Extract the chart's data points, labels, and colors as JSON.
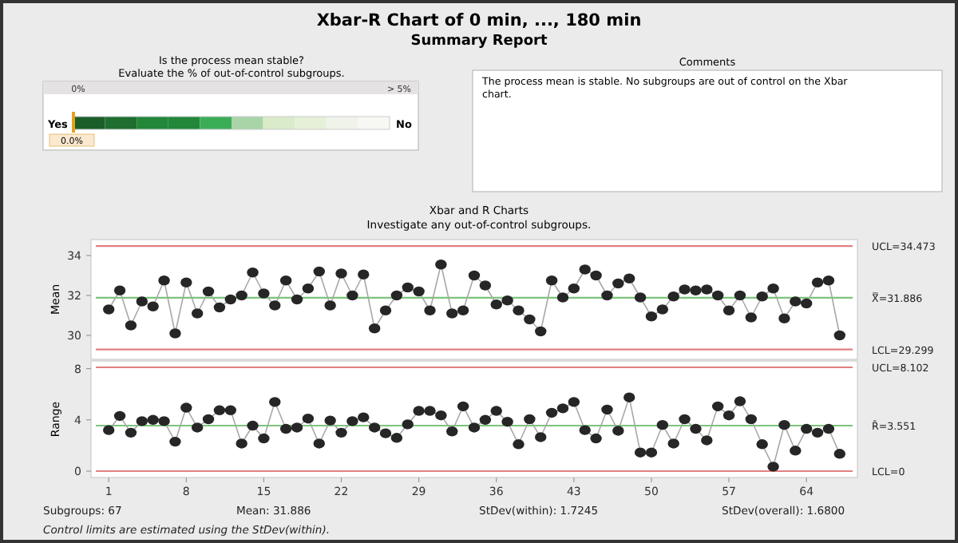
{
  "chart_data": [
    {
      "type": "other",
      "title": "Xbar-R Chart of 0 min, ..., 180 min",
      "subtitle": "Summary Report"
    },
    {
      "type": "other",
      "title": "Is the process mean stable?",
      "subtitle": "Evaluate the % of out-of-control subgroups.",
      "annotations": [
        "0%",
        "> 5%",
        "Yes",
        "No",
        "0.0%"
      ]
    },
    {
      "type": "other",
      "title": "Comments",
      "annotations": [
        "The process mean is stable. No subgroups are out of control on the Xbar chart."
      ]
    },
    {
      "type": "line",
      "title": "Xbar and R Charts",
      "subtitle": "Investigate any out-of-control subgroups.",
      "ylabel": "Mean",
      "marker": "circle",
      "tick_labels": "y",
      "xlim": [
        -0.6,
        68.6
      ],
      "ylim": [
        28.8,
        34.8
      ],
      "yticks": [
        30,
        32,
        34
      ],
      "x": [
        1,
        2,
        3,
        4,
        5,
        6,
        7,
        8,
        9,
        10,
        11,
        12,
        13,
        14,
        15,
        16,
        17,
        18,
        19,
        20,
        21,
        22,
        23,
        24,
        25,
        26,
        27,
        28,
        29,
        30,
        31,
        32,
        33,
        34,
        35,
        36,
        37,
        38,
        39,
        40,
        41,
        42,
        43,
        44,
        45,
        46,
        47,
        48,
        49,
        50,
        51,
        52,
        53,
        54,
        55,
        56,
        57,
        58,
        59,
        60,
        61,
        62,
        63,
        64,
        65,
        66,
        67
      ],
      "series": [
        {
          "color": "#262626",
          "values": [
            31.3,
            32.25,
            30.5,
            31.7,
            31.45,
            32.75,
            30.1,
            32.65,
            31.1,
            32.2,
            31.4,
            31.8,
            32.0,
            33.15,
            32.1,
            31.5,
            32.75,
            31.8,
            32.35,
            33.2,
            31.5,
            33.1,
            32.0,
            33.05,
            30.35,
            31.25,
            32.0,
            32.4,
            32.2,
            31.25,
            33.55,
            31.1,
            31.25,
            33.0,
            32.5,
            31.55,
            31.75,
            31.25,
            30.8,
            30.2,
            32.75,
            31.9,
            32.35,
            33.3,
            33.0,
            32.0,
            32.6,
            32.85,
            31.9,
            30.95,
            31.3,
            31.95,
            32.3,
            32.25,
            32.3,
            32.0,
            31.25,
            32.0,
            30.9,
            31.95,
            32.35,
            30.85,
            31.7,
            31.6,
            32.65,
            32.75,
            30.0
          ]
        }
      ],
      "ref_lines": [
        {
          "axis": "y",
          "value": 34.473,
          "label": "UCL=34.473",
          "color": "#e08080"
        },
        {
          "axis": "y",
          "value": 31.886,
          "label": "X̿=31.886",
          "color": "#7cc47c"
        },
        {
          "axis": "y",
          "value": 29.299,
          "label": "LCL=29.299",
          "color": "#e08080"
        }
      ]
    },
    {
      "type": "line",
      "ylabel": "Range",
      "marker": "circle",
      "xlim": [
        -0.6,
        68.6
      ],
      "xticks": [
        1,
        8,
        15,
        22,
        29,
        36,
        43,
        50,
        57,
        64
      ],
      "ylim": [
        -0.5,
        8.6
      ],
      "yticks": [
        0,
        4,
        8
      ],
      "x": [
        1,
        2,
        3,
        4,
        5,
        6,
        7,
        8,
        9,
        10,
        11,
        12,
        13,
        14,
        15,
        16,
        17,
        18,
        19,
        20,
        21,
        22,
        23,
        24,
        25,
        26,
        27,
        28,
        29,
        30,
        31,
        32,
        33,
        34,
        35,
        36,
        37,
        38,
        39,
        40,
        41,
        42,
        43,
        44,
        45,
        46,
        47,
        48,
        49,
        50,
        51,
        52,
        53,
        54,
        55,
        56,
        57,
        58,
        59,
        60,
        61,
        62,
        63,
        64,
        65,
        66,
        67
      ],
      "series": [
        {
          "color": "#262626",
          "values": [
            3.2,
            4.3,
            3.0,
            3.9,
            4.0,
            3.9,
            2.3,
            4.95,
            3.4,
            4.05,
            4.75,
            4.75,
            2.15,
            3.55,
            2.55,
            5.4,
            3.3,
            3.4,
            4.1,
            2.15,
            3.95,
            3.0,
            3.9,
            4.2,
            3.4,
            2.95,
            2.6,
            3.65,
            4.7,
            4.7,
            4.35,
            3.1,
            5.05,
            3.4,
            4.0,
            4.7,
            3.85,
            2.1,
            4.05,
            2.65,
            4.55,
            4.9,
            5.4,
            3.2,
            2.55,
            4.8,
            3.15,
            5.75,
            1.45,
            1.45,
            3.6,
            2.15,
            4.05,
            3.3,
            2.4,
            5.05,
            4.35,
            5.45,
            4.05,
            2.1,
            0.35,
            3.6,
            1.6,
            3.3,
            3.0,
            3.3,
            1.35
          ]
        }
      ],
      "ref_lines": [
        {
          "axis": "y",
          "value": 8.102,
          "label": "UCL=8.102",
          "color": "#e08080"
        },
        {
          "axis": "y",
          "value": 3.551,
          "label": "R̄=3.551",
          "color": "#7cc47c"
        },
        {
          "axis": "y",
          "value": 0,
          "label": "LCL=0",
          "color": "#e08080"
        }
      ],
      "annotations": [
        "Subgroups: 67",
        "Mean: 31.886",
        "StDev(within): 1.7245",
        "StDev(overall): 1.6800",
        "Control limits are estimated using the StDev(within)."
      ]
    }
  ]
}
